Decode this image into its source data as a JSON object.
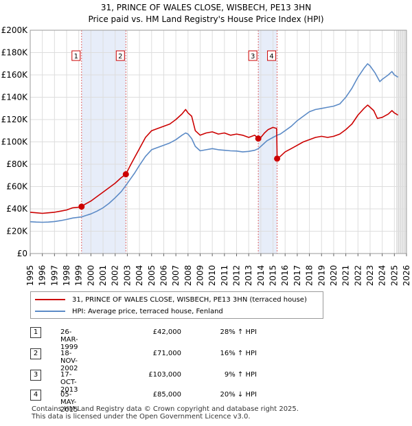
{
  "title_line1": "31, PRINCE OF WALES CLOSE, WISBECH, PE13 3HN",
  "title_line2": "Price paid vs. HM Land Registry's House Price Index (HPI)",
  "legend": {
    "red_label": "31, PRINCE OF WALES CLOSE, WISBECH, PE13 3HN (terraced house)",
    "blue_label": "HPI: Average price, terraced house, Fenland",
    "red_color": "#cc0000",
    "blue_color": "#5b8ac6"
  },
  "transactions": [
    {
      "num": "1",
      "date": "26-MAR-1999",
      "price": "£42,000",
      "hpi": "28% ↑ HPI"
    },
    {
      "num": "2",
      "date": "18-NOV-2002",
      "price": "£71,000",
      "hpi": "16% ↑ HPI"
    },
    {
      "num": "3",
      "date": "17-OCT-2013",
      "price": "£103,000",
      "hpi": "9% ↑ HPI"
    },
    {
      "num": "4",
      "date": "05-MAY-2015",
      "price": "£85,000",
      "hpi": "20% ↓ HPI"
    }
  ],
  "footer_line1": "Contains HM Land Registry data © Crown copyright and database right 2025.",
  "footer_line2": "This data is licensed under the Open Government Licence v3.0.",
  "chart_data": {
    "type": "line",
    "title": "Price paid vs. HM Land Registry's House Price Index (HPI)",
    "xlabel": "",
    "ylabel": "",
    "xlim": [
      1995,
      2026
    ],
    "ylim": [
      0,
      200000
    ],
    "x_ticks": [
      "1995",
      "1996",
      "1997",
      "1998",
      "1999",
      "2000",
      "2001",
      "2002",
      "2003",
      "2004",
      "2005",
      "2006",
      "2007",
      "2008",
      "2009",
      "2010",
      "2011",
      "2012",
      "2013",
      "2014",
      "2015",
      "2016",
      "2017",
      "2018",
      "2019",
      "2020",
      "2021",
      "2022",
      "2023",
      "2024",
      "2025",
      "2026"
    ],
    "y_ticks": [
      {
        "value": 0,
        "label": "£0"
      },
      {
        "value": 20000,
        "label": "£20K"
      },
      {
        "value": 40000,
        "label": "£40K"
      },
      {
        "value": 60000,
        "label": "£60K"
      },
      {
        "value": 80000,
        "label": "£80K"
      },
      {
        "value": 100000,
        "label": "£100K"
      },
      {
        "value": 120000,
        "label": "£120K"
      },
      {
        "value": 140000,
        "label": "£140K"
      },
      {
        "value": 160000,
        "label": "£160K"
      },
      {
        "value": 180000,
        "label": "£180K"
      },
      {
        "value": 200000,
        "label": "£200K"
      }
    ],
    "shaded_ranges": [
      [
        1999.23,
        2002.88
      ],
      [
        2013.79,
        2015.34
      ]
    ],
    "future_from": 2025.2,
    "markers": [
      {
        "label": "1",
        "x": 1999.23,
        "y": 42000
      },
      {
        "label": "2",
        "x": 2002.88,
        "y": 71000
      },
      {
        "label": "3",
        "x": 2013.79,
        "y": 103000
      },
      {
        "label": "4",
        "x": 2015.34,
        "y": 85000
      }
    ],
    "series": [
      {
        "name": "31, PRINCE OF WALES CLOSE, WISBECH, PE13 3HN (terraced house)",
        "color": "#cc0000",
        "points": [
          [
            1995.0,
            37000
          ],
          [
            1995.5,
            36500
          ],
          [
            1996.0,
            36000
          ],
          [
            1996.5,
            36500
          ],
          [
            1997.0,
            37000
          ],
          [
            1997.5,
            38000
          ],
          [
            1998.0,
            39000
          ],
          [
            1998.5,
            41000
          ],
          [
            1999.0,
            41500
          ],
          [
            1999.23,
            42000
          ],
          [
            1999.5,
            44000
          ],
          [
            2000.0,
            47000
          ],
          [
            2000.5,
            51000
          ],
          [
            2001.0,
            55000
          ],
          [
            2001.5,
            59000
          ],
          [
            2002.0,
            63000
          ],
          [
            2002.5,
            68000
          ],
          [
            2002.88,
            71000
          ],
          [
            2003.2,
            78000
          ],
          [
            2003.6,
            86000
          ],
          [
            2004.0,
            94000
          ],
          [
            2004.5,
            104000
          ],
          [
            2005.0,
            110000
          ],
          [
            2005.5,
            112000
          ],
          [
            2006.0,
            114000
          ],
          [
            2006.5,
            116000
          ],
          [
            2007.0,
            120000
          ],
          [
            2007.5,
            125000
          ],
          [
            2007.8,
            129000
          ],
          [
            2008.0,
            126000
          ],
          [
            2008.3,
            123000
          ],
          [
            2008.6,
            110000
          ],
          [
            2009.0,
            106000
          ],
          [
            2009.5,
            108000
          ],
          [
            2010.0,
            109000
          ],
          [
            2010.5,
            107000
          ],
          [
            2011.0,
            108000
          ],
          [
            2011.5,
            106000
          ],
          [
            2012.0,
            107000
          ],
          [
            2012.5,
            106000
          ],
          [
            2013.0,
            104000
          ],
          [
            2013.5,
            106000
          ],
          [
            2013.79,
            103000
          ],
          [
            2014.0,
            104000
          ],
          [
            2014.3,
            108000
          ],
          [
            2014.6,
            111000
          ],
          [
            2015.0,
            113000
          ],
          [
            2015.3,
            112000
          ],
          [
            2015.34,
            85000
          ],
          [
            2015.6,
            87000
          ],
          [
            2016.0,
            91000
          ],
          [
            2016.5,
            94000
          ],
          [
            2017.0,
            97000
          ],
          [
            2017.5,
            100000
          ],
          [
            2018.0,
            102000
          ],
          [
            2018.5,
            104000
          ],
          [
            2019.0,
            105000
          ],
          [
            2019.5,
            104000
          ],
          [
            2020.0,
            105000
          ],
          [
            2020.5,
            107000
          ],
          [
            2021.0,
            111000
          ],
          [
            2021.5,
            116000
          ],
          [
            2022.0,
            124000
          ],
          [
            2022.5,
            130000
          ],
          [
            2022.8,
            133000
          ],
          [
            2023.0,
            131000
          ],
          [
            2023.3,
            128000
          ],
          [
            2023.6,
            121000
          ],
          [
            2024.0,
            122000
          ],
          [
            2024.5,
            125000
          ],
          [
            2024.8,
            128000
          ],
          [
            2025.0,
            126000
          ],
          [
            2025.3,
            124000
          ]
        ]
      },
      {
        "name": "HPI: Average price, terraced house, Fenland",
        "color": "#5b8ac6",
        "points": [
          [
            1995.0,
            28500
          ],
          [
            1995.5,
            28200
          ],
          [
            1996.0,
            28000
          ],
          [
            1996.5,
            28200
          ],
          [
            1997.0,
            28700
          ],
          [
            1997.5,
            29500
          ],
          [
            1998.0,
            30500
          ],
          [
            1998.5,
            31800
          ],
          [
            1999.0,
            32500
          ],
          [
            1999.23,
            32800
          ],
          [
            1999.5,
            33800
          ],
          [
            2000.0,
            35500
          ],
          [
            2000.5,
            38000
          ],
          [
            2001.0,
            41000
          ],
          [
            2001.5,
            45000
          ],
          [
            2002.0,
            50000
          ],
          [
            2002.5,
            55500
          ],
          [
            2002.88,
            61000
          ],
          [
            2003.2,
            66000
          ],
          [
            2003.6,
            72000
          ],
          [
            2004.0,
            79000
          ],
          [
            2004.5,
            87000
          ],
          [
            2005.0,
            93000
          ],
          [
            2005.5,
            95000
          ],
          [
            2006.0,
            97000
          ],
          [
            2006.5,
            99000
          ],
          [
            2007.0,
            102000
          ],
          [
            2007.5,
            106000
          ],
          [
            2007.8,
            108000
          ],
          [
            2008.0,
            107000
          ],
          [
            2008.3,
            103000
          ],
          [
            2008.6,
            96000
          ],
          [
            2009.0,
            92000
          ],
          [
            2009.5,
            93000
          ],
          [
            2010.0,
            94000
          ],
          [
            2010.5,
            93000
          ],
          [
            2011.0,
            92500
          ],
          [
            2011.5,
            92000
          ],
          [
            2012.0,
            91800
          ],
          [
            2012.5,
            91000
          ],
          [
            2013.0,
            91500
          ],
          [
            2013.5,
            92500
          ],
          [
            2013.79,
            94000
          ],
          [
            2014.0,
            96000
          ],
          [
            2014.5,
            101000
          ],
          [
            2015.0,
            104000
          ],
          [
            2015.34,
            106000
          ],
          [
            2015.6,
            107000
          ],
          [
            2016.0,
            110000
          ],
          [
            2016.5,
            114000
          ],
          [
            2017.0,
            119000
          ],
          [
            2017.5,
            123000
          ],
          [
            2018.0,
            127000
          ],
          [
            2018.5,
            129000
          ],
          [
            2019.0,
            130000
          ],
          [
            2019.5,
            131000
          ],
          [
            2020.0,
            132000
          ],
          [
            2020.5,
            134000
          ],
          [
            2021.0,
            140000
          ],
          [
            2021.5,
            148000
          ],
          [
            2022.0,
            158000
          ],
          [
            2022.5,
            166000
          ],
          [
            2022.8,
            170000
          ],
          [
            2023.0,
            168000
          ],
          [
            2023.4,
            162000
          ],
          [
            2023.8,
            154000
          ],
          [
            2024.0,
            156000
          ],
          [
            2024.5,
            160000
          ],
          [
            2024.8,
            163000
          ],
          [
            2025.0,
            160000
          ],
          [
            2025.3,
            158000
          ]
        ]
      }
    ]
  }
}
